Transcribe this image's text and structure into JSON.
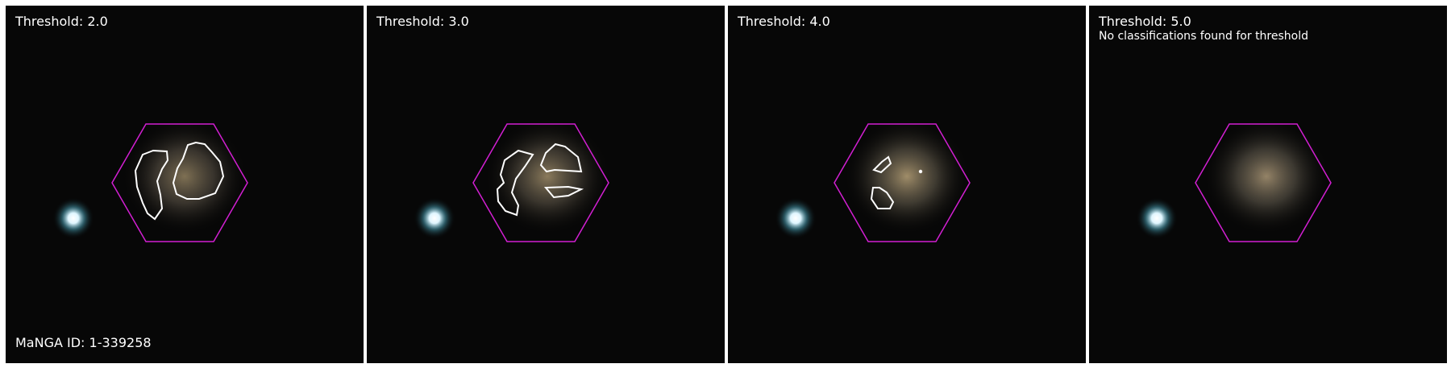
{
  "panels": [
    {
      "title": "Threshold: 2.0",
      "note": ""
    },
    {
      "title": "Threshold: 3.0",
      "note": ""
    },
    {
      "title": "Threshold: 4.0",
      "note": ""
    },
    {
      "title": "Threshold: 5.0",
      "note": "No classifications found for threshold"
    }
  ],
  "manga_label": "MaNGA ID: 1-339258",
  "colors": {
    "hexagon": "#d21fd2",
    "contour": "#ffffff",
    "background": "#000000"
  },
  "icons": [
    "star-glow",
    "galaxy-glow",
    "ifu-hexagon",
    "classification-contour"
  ]
}
